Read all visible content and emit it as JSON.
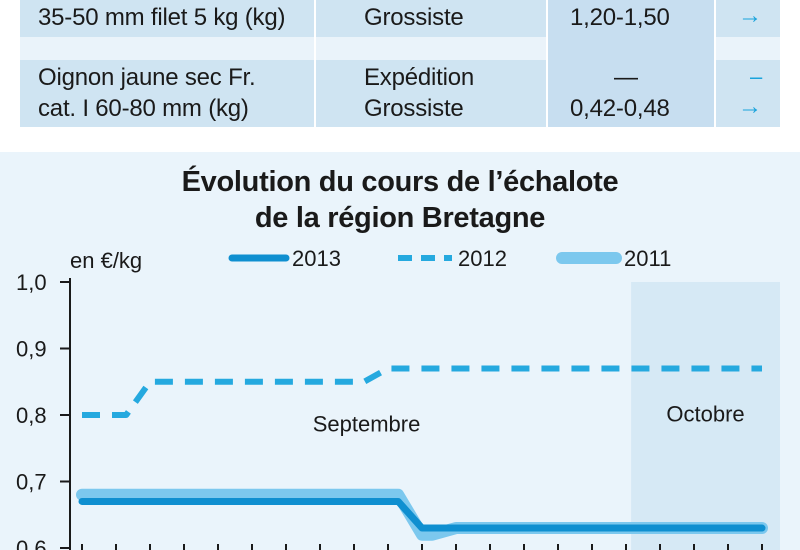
{
  "table": {
    "rows": [
      {
        "product_lines": [
          "35-50 mm filet 5 kg (kg)"
        ],
        "stage_lines": [
          "Grossiste"
        ],
        "price_lines": [
          "1,20-1,50"
        ],
        "trend_lines": [
          "→"
        ]
      },
      {
        "product_lines": [
          "Oignon jaune sec Fr.",
          "cat. I 60-80 mm (kg)"
        ],
        "stage_lines": [
          "Expédition",
          "Grossiste"
        ],
        "price_lines": [
          "—",
          "0,42-0,48"
        ],
        "trend_lines": [
          "–",
          "→"
        ]
      }
    ]
  },
  "colors": {
    "series_2013": "#0f8fd0",
    "series_2012": "#25a9df",
    "series_2011": "#7cc8ee",
    "october_shade": "#d6e9f5",
    "chart_bg": "#eaf4fb",
    "table_row": "#cfe4f2",
    "axis": "#1a1a1a"
  },
  "chart_data": {
    "type": "line",
    "title": "Évolution du cours de l’échalote",
    "subtitle": "de la région Bretagne",
    "ylabel": "en €/kg",
    "ylim": [
      0.6,
      1.0
    ],
    "yticks": [
      "1,0",
      "0,9",
      "0,8",
      "0,7",
      "0,6"
    ],
    "ytick_values": [
      1.0,
      0.9,
      0.8,
      0.7,
      0.6
    ],
    "legend_position": "top",
    "annotations": [
      {
        "text": "Septembre",
        "region": "september"
      },
      {
        "text": "Octobre",
        "region": "october"
      }
    ],
    "x": [
      1,
      2,
      3,
      4,
      5,
      6,
      7,
      8,
      9,
      10,
      11,
      12,
      13,
      14,
      15,
      16,
      17,
      18,
      19,
      20,
      21
    ],
    "october_start_index": 17,
    "series": [
      {
        "name": "2013",
        "style": "solid",
        "values": [
          0.67,
          0.67,
          0.67,
          0.67,
          0.67,
          0.67,
          0.67,
          0.67,
          0.67,
          0.67,
          0.63,
          0.63,
          0.63,
          0.63,
          0.63,
          0.63,
          0.63,
          0.63,
          0.63,
          0.63,
          0.63
        ]
      },
      {
        "name": "2012",
        "style": "dashed",
        "values": [
          0.8,
          0.8,
          0.85,
          0.85,
          0.85,
          0.85,
          0.85,
          0.85,
          0.85,
          0.87,
          0.87,
          0.87,
          0.87,
          0.87,
          0.87,
          0.87,
          0.87,
          0.87,
          0.87,
          0.87,
          0.87
        ]
      },
      {
        "name": "2011",
        "style": "solid-light",
        "values": [
          0.68,
          0.68,
          0.68,
          0.68,
          0.68,
          0.68,
          0.68,
          0.68,
          0.68,
          0.68,
          0.62,
          0.63,
          0.63,
          0.63,
          0.63,
          0.63,
          0.63,
          0.63,
          0.63,
          0.63,
          0.63
        ]
      }
    ]
  }
}
